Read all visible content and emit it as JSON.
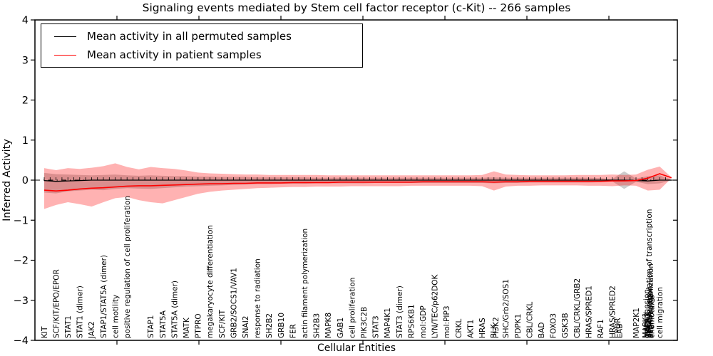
{
  "title": "Signaling events mediated by Stem cell factor receptor (c-Kit) -- 266 samples",
  "legend": [
    {
      "label": "Mean activity in all permuted samples",
      "color": "#000000"
    },
    {
      "label": "Mean activity in patient samples",
      "color": "#ff0000"
    }
  ],
  "colors": {
    "patient_line": "#ff0000",
    "permuted_line": "#000000",
    "patient_band_fill": "#ff0000",
    "patient_band_opacity": 0.3,
    "permuted_band_fill": "#000000",
    "permuted_band_opacity": 0.2,
    "axis": "#000000",
    "background": "#ffffff"
  },
  "chart_data": {
    "type": "line",
    "title": "Signaling events mediated by Stem cell factor receptor (c-Kit) -- 266 samples",
    "xlabel": "Cellular Entities",
    "ylabel": "Inferred Activity",
    "ylim": [
      -4,
      4
    ],
    "yticks": [
      4,
      3,
      2,
      1,
      0,
      -1,
      -2,
      -3,
      -4
    ],
    "zero_line": {
      "style": "dash-dot",
      "y": 0,
      "color": "#000000"
    },
    "legend_position": "upper left",
    "grid": false,
    "note": "PARADIGM-style inferred activity plot; red band = patient-sample spread, gray band = permuted-sample spread; some x labels overlap and are partially illegible near the right end",
    "series": [
      {
        "name": "Mean activity in all permuted samples",
        "color": "#000000",
        "values": [
          -0.01,
          -0.03,
          -0.02,
          -0.01,
          0,
          0,
          0,
          0,
          0,
          0,
          0,
          0,
          0,
          0,
          0,
          0,
          0,
          0,
          0,
          0,
          0,
          0,
          0,
          0,
          0,
          0,
          0,
          0,
          0,
          0,
          0,
          0,
          0,
          0,
          0,
          0,
          0,
          0,
          0,
          0,
          0,
          0,
          0,
          0,
          0,
          0,
          0,
          0,
          0,
          0,
          -0.01,
          -0.02,
          0,
          0
        ]
      },
      {
        "name": "Mean activity in patient samples",
        "color": "#ff0000",
        "values": [
          -0.25,
          -0.27,
          -0.25,
          -0.22,
          -0.2,
          -0.19,
          -0.17,
          -0.15,
          -0.14,
          -0.14,
          -0.13,
          -0.12,
          -0.11,
          -0.1,
          -0.09,
          -0.09,
          -0.08,
          -0.08,
          -0.07,
          -0.07,
          -0.07,
          -0.06,
          -0.06,
          -0.06,
          -0.06,
          -0.05,
          -0.05,
          -0.05,
          -0.05,
          -0.05,
          -0.05,
          -0.05,
          -0.04,
          -0.04,
          -0.04,
          -0.04,
          -0.04,
          -0.04,
          -0.05,
          -0.04,
          -0.04,
          -0.03,
          -0.03,
          -0.03,
          -0.03,
          -0.03,
          -0.03,
          -0.03,
          -0.02,
          -0.02,
          -0.01,
          0.05,
          0.16,
          0.06
        ]
      }
    ],
    "bands": [
      {
        "name": "patient band",
        "color": "#ff0000",
        "opacity": 0.3,
        "upper": [
          0.3,
          0.25,
          0.3,
          0.28,
          0.31,
          0.35,
          0.42,
          0.33,
          0.27,
          0.33,
          0.3,
          0.28,
          0.24,
          0.19,
          0.17,
          0.16,
          0.15,
          0.14,
          0.14,
          0.13,
          0.13,
          0.13,
          0.13,
          0.13,
          0.12,
          0.12,
          0.12,
          0.12,
          0.12,
          0.12,
          0.12,
          0.12,
          0.12,
          0.12,
          0.12,
          0.12,
          0.12,
          0.13,
          0.22,
          0.14,
          0.13,
          0.12,
          0.12,
          0.12,
          0.12,
          0.13,
          0.13,
          0.13,
          0.14,
          0.13,
          0.14,
          0.26,
          0.34,
          0.07
        ],
        "lower": [
          -0.72,
          -0.62,
          -0.55,
          -0.6,
          -0.66,
          -0.55,
          -0.45,
          -0.42,
          -0.5,
          -0.55,
          -0.58,
          -0.5,
          -0.42,
          -0.34,
          -0.29,
          -0.26,
          -0.24,
          -0.22,
          -0.2,
          -0.19,
          -0.18,
          -0.17,
          -0.17,
          -0.16,
          -0.16,
          -0.16,
          -0.15,
          -0.15,
          -0.15,
          -0.15,
          -0.15,
          -0.14,
          -0.14,
          -0.14,
          -0.14,
          -0.14,
          -0.14,
          -0.15,
          -0.26,
          -0.16,
          -0.14,
          -0.14,
          -0.13,
          -0.13,
          -0.13,
          -0.13,
          -0.14,
          -0.14,
          -0.15,
          -0.13,
          -0.14,
          -0.26,
          -0.24,
          0.05
        ]
      },
      {
        "name": "permuted band",
        "color": "#000000",
        "opacity": 0.2,
        "upper": [
          0.18,
          0.15,
          0.14,
          0.13,
          0.12,
          0.13,
          0.14,
          0.12,
          0.11,
          0.12,
          0.11,
          0.1,
          0.1,
          0.09,
          0.09,
          0.08,
          0.08,
          0.08,
          0.07,
          0.07,
          0.07,
          0.07,
          0.07,
          0.06,
          0.06,
          0.06,
          0.06,
          0.06,
          0.06,
          0.06,
          0.06,
          0.06,
          0.06,
          0.06,
          0.06,
          0.06,
          0.06,
          0.06,
          0.07,
          0.06,
          0.06,
          0.06,
          0.06,
          0.06,
          0.06,
          0.06,
          0.06,
          0.05,
          0.03,
          0.22,
          0.04,
          0.1,
          0.12,
          0.01
        ],
        "lower": [
          -0.31,
          -0.33,
          -0.28,
          -0.26,
          -0.24,
          -0.25,
          -0.22,
          -0.2,
          -0.21,
          -0.22,
          -0.2,
          -0.18,
          -0.16,
          -0.15,
          -0.14,
          -0.13,
          -0.12,
          -0.11,
          -0.1,
          -0.1,
          -0.09,
          -0.09,
          -0.09,
          -0.08,
          -0.08,
          -0.08,
          -0.08,
          -0.08,
          -0.07,
          -0.07,
          -0.07,
          -0.07,
          -0.07,
          -0.07,
          -0.07,
          -0.07,
          -0.07,
          -0.07,
          -0.08,
          -0.07,
          -0.07,
          -0.06,
          -0.06,
          -0.06,
          -0.06,
          -0.06,
          -0.06,
          -0.05,
          -0.03,
          -0.22,
          -0.04,
          -0.1,
          -0.08,
          -0.01
        ]
      }
    ],
    "entities": [
      {
        "label": "KIT",
        "xi": 0
      },
      {
        "label": "SCF/KIT/EPO/EPOR",
        "xi": 1
      },
      {
        "label": "STAT1",
        "xi": 2
      },
      {
        "label": "STAT1 (dimer)",
        "xi": 3
      },
      {
        "label": "JAK2",
        "xi": 4
      },
      {
        "label": "STAP1/STAT5A (dimer)",
        "xi": 5
      },
      {
        "label": "cell motility",
        "xi": 6
      },
      {
        "label": "positive regulation of cell proliferation",
        "xi": 7
      },
      {
        "label": "STAP1",
        "xi": 9
      },
      {
        "label": "STAT5A",
        "xi": 10
      },
      {
        "label": "STAT5A (dimer)",
        "xi": 11
      },
      {
        "label": "MATK",
        "xi": 12
      },
      {
        "label": "PTPRO",
        "xi": 13
      },
      {
        "label": "megakaryocyte differentiation",
        "xi": 14
      },
      {
        "label": "SCF/KIT",
        "xi": 15
      },
      {
        "label": "GRB2/SOCS1/VAV1",
        "xi": 16
      },
      {
        "label": "SNAI2",
        "xi": 17
      },
      {
        "label": "response to radiation",
        "xi": 18
      },
      {
        "label": "SH2B2",
        "xi": 19
      },
      {
        "label": "GRB10",
        "xi": 20
      },
      {
        "label": "FER",
        "xi": 21
      },
      {
        "label": "actin filament polymerization",
        "xi": 22
      },
      {
        "label": "SH2B3",
        "xi": 23
      },
      {
        "label": "MAPK8",
        "xi": 24
      },
      {
        "label": "GAB1",
        "xi": 25
      },
      {
        "label": "cell proliferation",
        "xi": 26
      },
      {
        "label": "PIK3C2B",
        "xi": 27
      },
      {
        "label": "STAT3",
        "xi": 28
      },
      {
        "label": "MAP4K1",
        "xi": 29
      },
      {
        "label": "STAT3 (dimer)",
        "xi": 30
      },
      {
        "label": "RPS6KB1",
        "xi": 31
      },
      {
        "label": "mol:GDP",
        "xi": 32
      },
      {
        "label": "LYN/TEC/p62DOK",
        "xi": 33
      },
      {
        "label": "mol:PIP3",
        "xi": 34
      },
      {
        "label": "CRKL",
        "xi": 35
      },
      {
        "label": "AKT1",
        "xi": 36
      },
      {
        "label": "HRAS",
        "xi": 37
      },
      {
        "label": "BLK",
        "xi": 37.95
      },
      {
        "label": "PI3K2",
        "xi": 38.15
      },
      {
        "label": "SHC/Grb2/SOS1",
        "xi": 39
      },
      {
        "label": "PDPK1",
        "xi": 40
      },
      {
        "label": "CBL/CRKL",
        "xi": 41
      },
      {
        "label": "BAD",
        "xi": 42
      },
      {
        "label": "FOXO3",
        "xi": 43
      },
      {
        "label": "GSK3B",
        "xi": 44
      },
      {
        "label": "CBL/CRKL/GRB2",
        "xi": 45
      },
      {
        "label": "HRAS/SPRED1",
        "xi": 46
      },
      {
        "label": "RAF1",
        "xi": 47
      },
      {
        "label": "HRAS/SPRED2",
        "xi": 48
      },
      {
        "label": "EPOR",
        "xi": 48.45
      },
      {
        "label": "LAB",
        "xi": 48.6
      },
      {
        "label": "MAP2K1",
        "xi": 50
      },
      {
        "label": "MAPK1",
        "xi": 50.8
      },
      {
        "label": "cell adhesion",
        "xi": 50.88
      },
      {
        "label": "MAPK3",
        "xi": 50.95
      },
      {
        "label": "CREB1",
        "xi": 51.0
      },
      {
        "label": "ELK1",
        "xi": 51.05
      },
      {
        "label": "positive regulation of transcription",
        "xi": 51.1
      },
      {
        "label": "degranulation",
        "xi": 51.15
      },
      {
        "label": "actin reorganization",
        "xi": 51.22
      },
      {
        "label": "chemotaxis",
        "xi": 51.3
      },
      {
        "label": "cell migration",
        "xi": 52
      }
    ]
  }
}
